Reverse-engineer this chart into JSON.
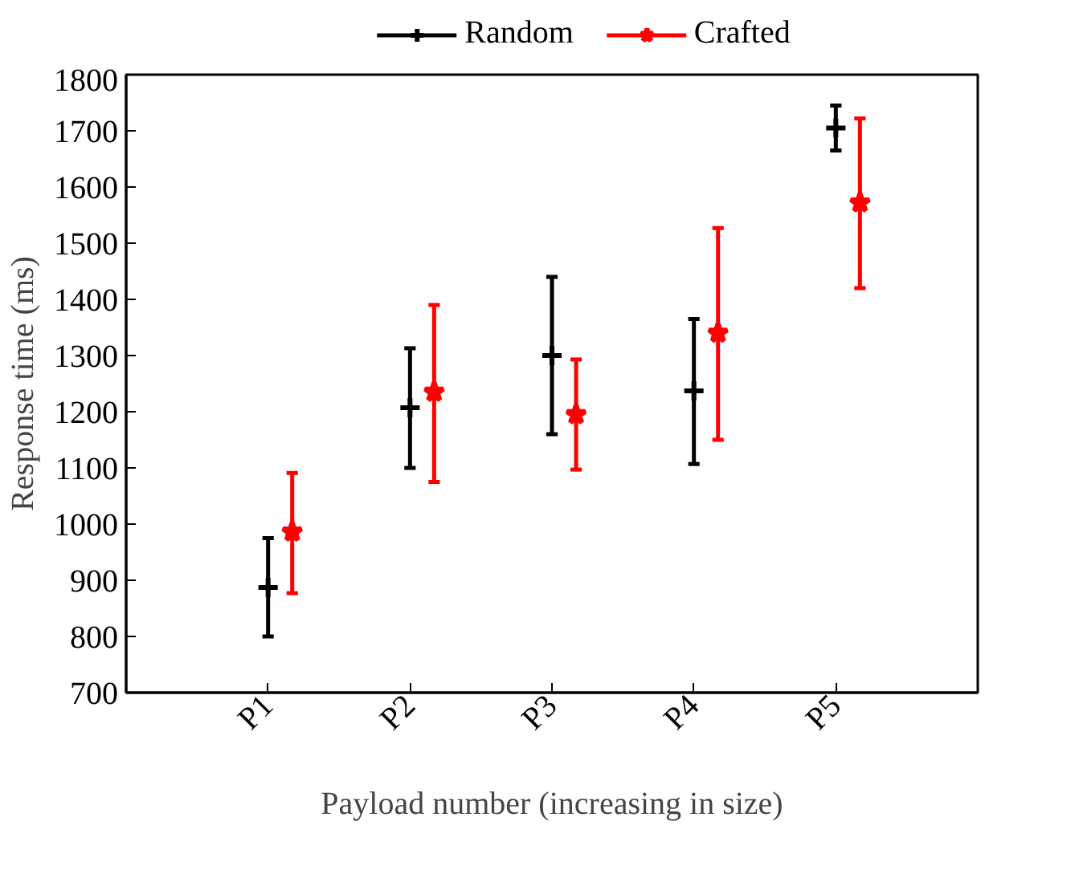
{
  "chart_data": {
    "type": "scatter",
    "xlabel": "Payload number (increasing in size)",
    "ylabel": "Response time (ms)",
    "categories": [
      "P1",
      "P2",
      "P3",
      "P4",
      "P5"
    ],
    "series": [
      {
        "name": "Random",
        "color": "#000000",
        "marker": "cross",
        "values": [
          887,
          1207,
          1300,
          1237,
          1705
        ],
        "errors": [
          [
            800,
            975
          ],
          [
            1100,
            1313
          ],
          [
            1160,
            1440
          ],
          [
            1107,
            1365
          ],
          [
            1665,
            1745
          ]
        ]
      },
      {
        "name": "Crafted",
        "color": "#ff0000",
        "marker": "star",
        "values": [
          986,
          1235,
          1195,
          1340,
          1572
        ],
        "errors": [
          [
            877,
            1091
          ],
          [
            1075,
            1390
          ],
          [
            1097,
            1293
          ],
          [
            1150,
            1527
          ],
          [
            1420,
            1722
          ]
        ]
      }
    ],
    "ylim": [
      700,
      1800
    ],
    "yticks": [
      700,
      800,
      900,
      1000,
      1100,
      1200,
      1300,
      1400,
      1500,
      1600,
      1700,
      1800
    ],
    "grid": false,
    "legend": "top"
  }
}
